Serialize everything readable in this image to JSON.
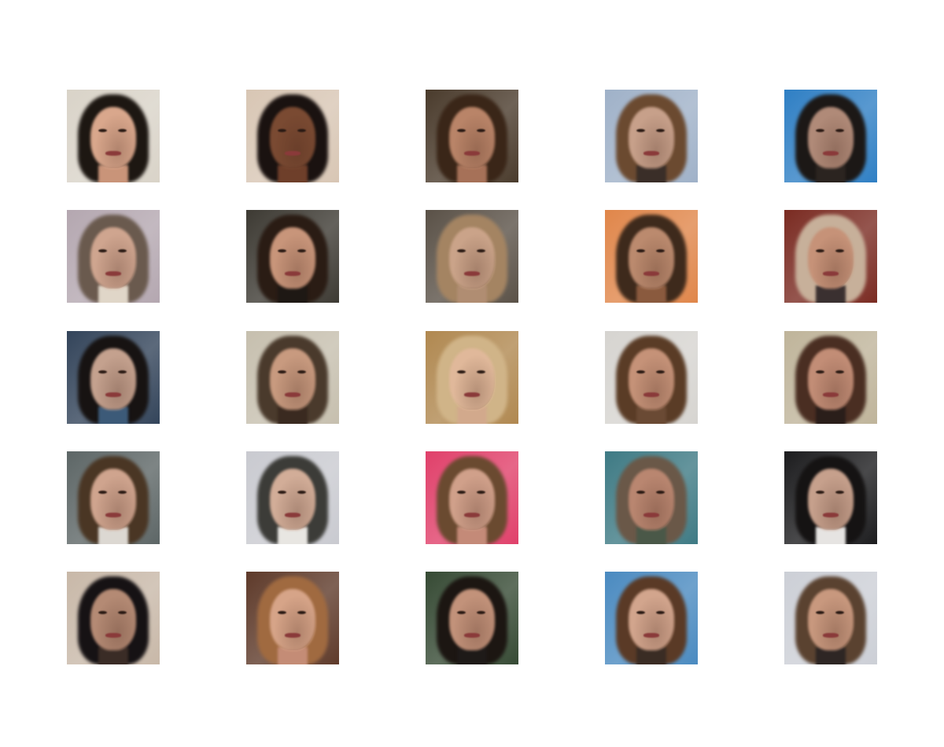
{
  "grid": {
    "rows": 5,
    "cols": 5,
    "tiles": [
      {
        "bg": "#d9d3c8",
        "hair": "#1d1712",
        "face": "#d9a78c",
        "neck": "#c99479"
      },
      {
        "bg": "#d8c6b4",
        "hair": "#1a1210",
        "face": "#7a4a32",
        "neck": "#6e3f2a"
      },
      {
        "bg": "#4a3b2c",
        "hair": "#3a2618",
        "face": "#b98468",
        "neck": "#a67158"
      },
      {
        "bg": "#9fb1c8",
        "hair": "#6b4a30",
        "face": "#c7a08a",
        "neck": "#3a2e28"
      },
      {
        "bg": "#2f7fc4",
        "hair": "#1c1816",
        "face": "#b08a78",
        "neck": "#2b2420"
      },
      {
        "bg": "#b4a7b0",
        "hair": "#6a5a4e",
        "face": "#cfa58f",
        "neck": "#e0d6c8"
      },
      {
        "bg": "#3d3a33",
        "hair": "#2a1c14",
        "face": "#c8957a",
        "neck": "#1e1814"
      },
      {
        "bg": "#5a5147",
        "hair": "#a48462",
        "face": "#caa389",
        "neck": "#b08d72"
      },
      {
        "bg": "#e0864a",
        "hair": "#3e2a1c",
        "face": "#bb8a6e",
        "neck": "#8a5a3e"
      },
      {
        "bg": "#7a2b22",
        "hair": "#c7b09a",
        "face": "#c69278",
        "neck": "#3a3030"
      },
      {
        "bg": "#33445a",
        "hair": "#171312",
        "face": "#c4a18e",
        "neck": "#3c5a78"
      },
      {
        "bg": "#c6bfae",
        "hair": "#4a3a2c",
        "face": "#c89a7f",
        "neck": "#3a2a20"
      },
      {
        "bg": "#b08850",
        "hair": "#d0b488",
        "face": "#e0b89a",
        "neck": "#d2a98c"
      },
      {
        "bg": "#d6d4d0",
        "hair": "#5a3c26",
        "face": "#c59278",
        "neck": "#6a4a34"
      },
      {
        "bg": "#bfb49a",
        "hair": "#4a2e22",
        "face": "#c28d76",
        "neck": "#2a1e1a"
      },
      {
        "bg": "#5d6666",
        "hair": "#4a3624",
        "face": "#cfa48e",
        "neck": "#dcd8d2"
      },
      {
        "bg": "#c9cad0",
        "hair": "#3c3c38",
        "face": "#d2ad98",
        "neck": "#e8e6e2"
      },
      {
        "bg": "#e0406a",
        "hair": "#6a4a30",
        "face": "#d0a08a",
        "neck": "#c48a78"
      },
      {
        "bg": "#3e7a84",
        "hair": "#6a5848",
        "face": "#b98670",
        "neck": "#4a5848"
      },
      {
        "bg": "#1c1c1e",
        "hair": "#151313",
        "face": "#c6a08c",
        "neck": "#e6e4e2"
      },
      {
        "bg": "#c8b8a8",
        "hair": "#161214",
        "face": "#b48a74",
        "neck": "#3a2c26"
      },
      {
        "bg": "#5e3a2a",
        "hair": "#a06a40",
        "face": "#d6a488",
        "neck": "#c48c76"
      },
      {
        "bg": "#364a34",
        "hair": "#1c1612",
        "face": "#c2927a",
        "neck": "#1e1a18"
      },
      {
        "bg": "#4a8ac0",
        "hair": "#5a3a26",
        "face": "#d2a58d",
        "neck": "#3a2c24"
      },
      {
        "bg": "#cccfd6",
        "hair": "#5a4230",
        "face": "#c8987e",
        "neck": "#2e2624"
      }
    ]
  }
}
